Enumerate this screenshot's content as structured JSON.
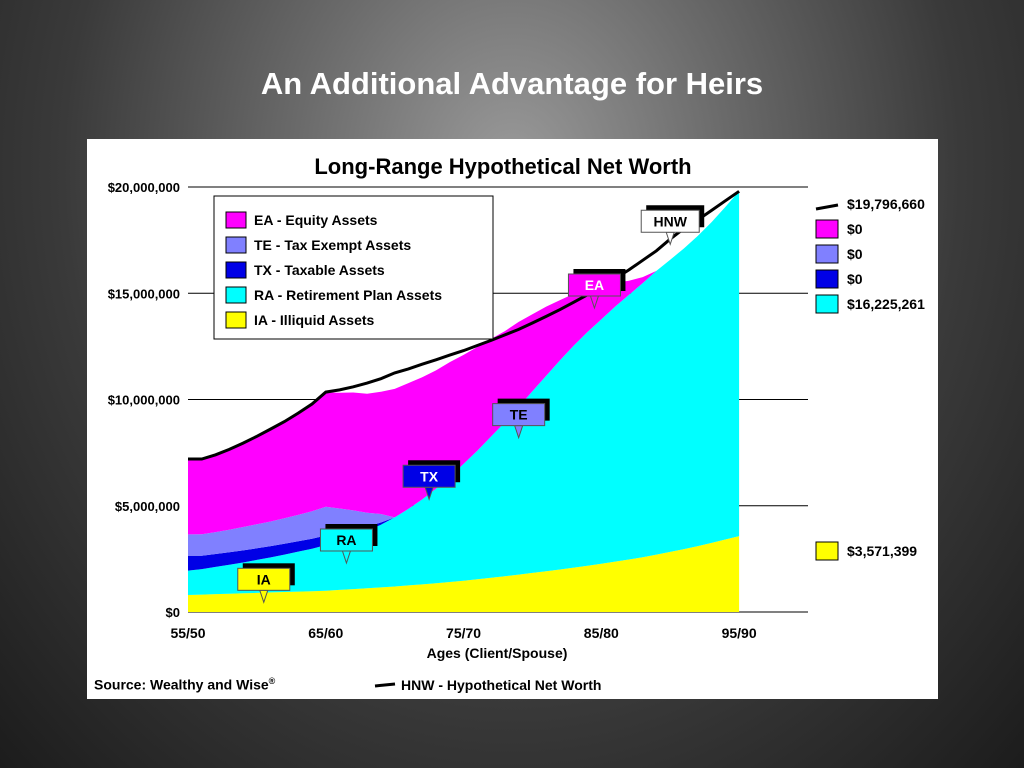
{
  "slide": {
    "title": "An Additional Advantage for Heirs",
    "source_label": "Source:  Wealthy and Wise",
    "source_mark": "®"
  },
  "colors": {
    "EA": "#ff00ff",
    "TE": "#8080ff",
    "TX": "#0000e6",
    "RA": "#00ffff",
    "IA": "#ffff00",
    "HNW": "#000000"
  },
  "chart_data": {
    "type": "area",
    "title": "Long-Range Hypothetical Net Worth",
    "xlabel": "Ages (Client/Spouse)",
    "ylabel": "",
    "x_tick_labels": [
      "55/50",
      "65/60",
      "75/70",
      "85/80",
      "95/90"
    ],
    "y_tick_labels": [
      "$20,000,000",
      "$15,000,000",
      "$10,000,000",
      "$5,000,000",
      "$0"
    ],
    "ylim": [
      0,
      20000000
    ],
    "stacked": true,
    "grid": true,
    "legend_position": "top-left",
    "x": [
      0,
      1,
      2,
      3,
      4,
      5,
      6,
      7,
      8,
      9,
      10,
      11,
      12,
      13,
      14,
      15,
      16,
      17,
      18,
      19,
      20,
      21,
      22,
      23,
      24,
      25,
      26,
      27,
      28,
      29,
      30,
      31,
      32,
      33,
      34,
      35,
      36,
      37,
      38,
      39,
      40
    ],
    "series": [
      {
        "key": "IA",
        "name": "IA - Illiquid Assets",
        "values": [
          800000,
          820000,
          840000,
          860000,
          880000,
          900000,
          920000,
          940000,
          960000,
          980000,
          1000000,
          1040000,
          1080000,
          1120000,
          1160000,
          1200000,
          1250000,
          1300000,
          1350000,
          1410000,
          1470000,
          1540000,
          1610000,
          1680000,
          1760000,
          1840000,
          1920000,
          2000000,
          2090000,
          2180000,
          2270000,
          2370000,
          2470000,
          2580000,
          2700000,
          2830000,
          2960000,
          3100000,
          3250000,
          3410000,
          3571399
        ]
      },
      {
        "key": "RA",
        "name": "RA - Retirement Plan Assets",
        "values": [
          1150000,
          1200000,
          1280000,
          1360000,
          1450000,
          1550000,
          1650000,
          1760000,
          1880000,
          2000000,
          2150000,
          2300000,
          2500000,
          2700000,
          2950000,
          3250000,
          3600000,
          4000000,
          4450000,
          4950000,
          5500000,
          6050000,
          6650000,
          7250000,
          7900000,
          8550000,
          9200000,
          9850000,
          10450000,
          11000000,
          11500000,
          12000000,
          12450000,
          12900000,
          13350000,
          13750000,
          14150000,
          14600000,
          15100000,
          15650000,
          16225261
        ]
      },
      {
        "key": "TX",
        "name": "TX - Taxable Assets",
        "values": [
          700000,
          630000,
          610000,
          590000,
          570000,
          550000,
          530000,
          510000,
          490000,
          470000,
          450000,
          380000,
          300000,
          200000,
          100000,
          0,
          0,
          0,
          0,
          0,
          0,
          0,
          0,
          0,
          0,
          0,
          0,
          0,
          0,
          0,
          0,
          0,
          0,
          0,
          0,
          0,
          0,
          0,
          0,
          0,
          0
        ]
      },
      {
        "key": "TE",
        "name": "TE - Tax Exempt Assets",
        "values": [
          1000000,
          1010000,
          1030000,
          1060000,
          1100000,
          1130000,
          1160000,
          1200000,
          1240000,
          1290000,
          1350000,
          1150000,
          900000,
          650000,
          400000,
          0,
          0,
          0,
          0,
          0,
          0,
          0,
          0,
          0,
          0,
          0,
          0,
          0,
          0,
          0,
          0,
          0,
          0,
          0,
          0,
          0,
          0,
          0,
          0,
          0,
          0
        ]
      },
      {
        "key": "EA",
        "name": "EA - Equity Assets",
        "values": [
          3550000,
          3540000,
          3640000,
          3780000,
          3930000,
          4140000,
          4350000,
          4550000,
          4790000,
          5050000,
          5380000,
          5450000,
          5550000,
          5600000,
          5750000,
          6050000,
          5920000,
          5750000,
          5570000,
          5400000,
          5130000,
          4880000,
          4590000,
          4290000,
          3990000,
          3620000,
          3250000,
          2830000,
          2440000,
          2030000,
          1610000,
          1130000,
          670000,
          280000,
          0,
          0,
          0,
          0,
          0,
          0,
          0
        ]
      },
      {
        "key": "HNW",
        "name": "HNW - Hypothetical Net Worth",
        "type": "line",
        "values": [
          7200000,
          7200000,
          7400000,
          7650000,
          7950000,
          8270000,
          8610000,
          8960000,
          9360000,
          9790000,
          10350000,
          10450000,
          10600000,
          10770000,
          10980000,
          11250000,
          11440000,
          11660000,
          11870000,
          12090000,
          12300000,
          12540000,
          12780000,
          13040000,
          13300000,
          13600000,
          13910000,
          14230000,
          14580000,
          14930000,
          15300000,
          15690000,
          16100000,
          16550000,
          17000000,
          17550000,
          18050000,
          18450000,
          18900000,
          19350000,
          19796660
        ]
      }
    ],
    "ending_values": [
      {
        "key": "HNW",
        "label": "$19,796,660"
      },
      {
        "key": "EA",
        "label": "$0"
      },
      {
        "key": "TE",
        "label": "$0"
      },
      {
        "key": "TX",
        "label": "$0"
      },
      {
        "key": "RA",
        "label": "$16,225,261"
      },
      {
        "key": "IA",
        "label": "$3,571,399"
      }
    ],
    "callouts": [
      {
        "key": "HNW",
        "label": "HNW",
        "x": 35,
        "y": 17400000,
        "fill": "#ffffff",
        "text_color": "#000000"
      },
      {
        "key": "EA",
        "label": "EA",
        "x": 29.5,
        "y": 14400000,
        "fill": "#ff00ff",
        "text_color": "#ffffff"
      },
      {
        "key": "TE",
        "label": "TE",
        "x": 24,
        "y": 8300000,
        "fill": "#8080ff",
        "text_color": "#000000"
      },
      {
        "key": "TX",
        "label": "TX",
        "x": 17.5,
        "y": 5400000,
        "fill": "#0000e6",
        "text_color": "#ffffff"
      },
      {
        "key": "RA",
        "label": "RA",
        "x": 11.5,
        "y": 2400000,
        "fill": "#00ffff",
        "text_color": "#000000"
      },
      {
        "key": "IA",
        "label": "IA",
        "x": 5.5,
        "y": 550000,
        "fill": "#ffff00",
        "text_color": "#000000"
      }
    ],
    "legend": [
      {
        "key": "EA",
        "label": "EA - Equity Assets"
      },
      {
        "key": "TE",
        "label": "TE - Tax Exempt Assets"
      },
      {
        "key": "TX",
        "label": "TX - Taxable Assets"
      },
      {
        "key": "RA",
        "label": "RA - Retirement Plan Assets"
      },
      {
        "key": "IA",
        "label": "IA - Illiquid Assets"
      }
    ],
    "hnw_key_label": "HNW - Hypothetical Net Worth"
  }
}
